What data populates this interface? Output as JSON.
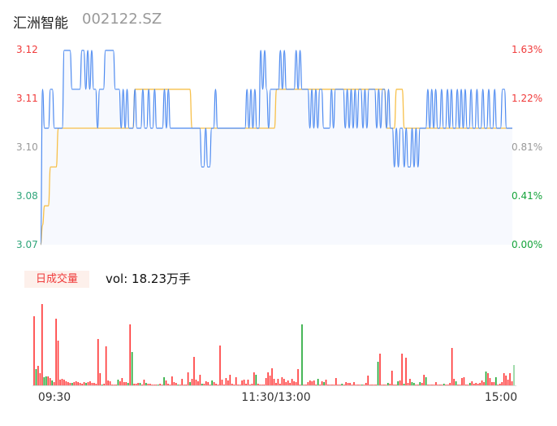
{
  "header": {
    "name": "汇洲智能",
    "code": "002122.SZ"
  },
  "colors": {
    "price_line": "#4d8af0",
    "avg_line": "#f7c04a",
    "area_fill": "#f7f9fe",
    "up": "#ff3333",
    "down": "#1aa52f",
    "up_label": "#f03a3a",
    "flat_label": "#999999",
    "down_label_left": "#2fa57a",
    "down_label_right": "#14a33a"
  },
  "volume_panel": {
    "badge": "日成交量",
    "total": "vol: 18.23万手"
  },
  "chart_data": [
    {
      "type": "line",
      "title": "",
      "y_ticks_left": [
        "3.12",
        "3.11",
        "3.10",
        "3.08",
        "3.07"
      ],
      "y_ticks_right": [
        "1.63%",
        "1.22%",
        "0.81%",
        "0.41%",
        "0.00%"
      ],
      "ylim": [
        3.07,
        3.12
      ],
      "base_price": 3.07,
      "x_ticks": [
        "09:30",
        "11:30/13:00",
        "15:00"
      ],
      "grid": false,
      "series": [
        {
          "key": "price",
          "values": [
            3.07,
            3.11,
            3.1,
            3.1,
            3.1,
            3.11,
            3.11,
            3.1,
            3.1,
            3.1,
            3.1,
            3.1,
            3.12,
            3.12,
            3.12,
            3.12,
            3.11,
            3.11,
            3.11,
            3.11,
            3.11,
            3.12,
            3.12,
            3.11,
            3.12,
            3.11,
            3.12,
            3.11,
            3.11,
            3.1,
            3.11,
            3.11,
            3.11,
            3.12,
            3.12,
            3.12,
            3.12,
            3.12,
            3.11,
            3.11,
            3.11,
            3.1,
            3.11,
            3.1,
            3.11,
            3.1,
            3.1,
            3.1,
            3.11,
            3.1,
            3.1,
            3.1,
            3.11,
            3.1,
            3.1,
            3.11,
            3.1,
            3.1,
            3.11,
            3.1,
            3.1,
            3.1,
            3.1,
            3.11,
            3.1,
            3.11,
            3.1,
            3.1,
            3.1,
            3.1,
            3.1,
            3.1,
            3.1,
            3.1,
            3.1,
            3.1,
            3.1,
            3.1,
            3.1,
            3.1,
            3.1,
            3.1,
            3.09,
            3.09,
            3.1,
            3.09,
            3.09,
            3.1,
            3.1,
            3.11,
            3.1,
            3.1,
            3.1,
            3.1,
            3.1,
            3.1,
            3.1,
            3.1,
            3.1,
            3.1,
            3.1,
            3.1,
            3.1,
            3.1,
            3.1,
            3.11,
            3.1,
            3.11,
            3.1,
            3.11,
            3.1,
            3.1,
            3.12,
            3.11,
            3.12,
            3.11,
            3.1,
            3.11,
            3.11,
            3.11,
            3.11,
            3.11,
            3.12,
            3.11,
            3.12,
            3.11,
            3.11,
            3.11,
            3.11,
            3.11,
            3.12,
            3.11,
            3.12,
            3.11,
            3.11,
            3.11,
            3.11,
            3.1,
            3.11,
            3.1,
            3.11,
            3.1,
            3.11,
            3.11,
            3.1,
            3.1,
            3.1,
            3.1,
            3.11,
            3.1,
            3.11,
            3.11,
            3.11,
            3.11,
            3.11,
            3.1,
            3.11,
            3.1,
            3.11,
            3.1,
            3.11,
            3.1,
            3.11,
            3.11,
            3.1,
            3.11,
            3.1,
            3.11,
            3.11,
            3.11,
            3.11,
            3.1,
            3.11,
            3.1,
            3.11,
            3.11,
            3.1,
            3.11,
            3.1,
            3.1,
            3.09,
            3.1,
            3.09,
            3.1,
            3.1,
            3.09,
            3.1,
            3.09,
            3.09,
            3.1,
            3.09,
            3.1,
            3.09,
            3.1,
            3.1,
            3.1,
            3.1,
            3.11,
            3.1,
            3.11,
            3.1,
            3.11,
            3.1,
            3.1,
            3.11,
            3.1,
            3.1,
            3.11,
            3.1,
            3.11,
            3.1,
            3.1,
            3.11,
            3.1,
            3.11,
            3.1,
            3.11,
            3.1,
            3.1,
            3.11,
            3.1,
            3.1,
            3.11,
            3.1,
            3.1,
            3.11,
            3.1,
            3.1,
            3.11,
            3.1,
            3.1,
            3.11,
            3.1,
            3.1,
            3.1,
            3.11,
            3.11,
            3.1,
            3.1,
            3.1,
            3.1
          ]
        },
        {
          "key": "average",
          "values": [
            3.07,
            3.075,
            3.08,
            3.08,
            3.08,
            3.09,
            3.09,
            3.09,
            3.09,
            3.1,
            3.1,
            3.1,
            3.1,
            3.1,
            3.1,
            3.1,
            3.1,
            3.1,
            3.1,
            3.1,
            3.1,
            3.1,
            3.1,
            3.1,
            3.1,
            3.1,
            3.1,
            3.1,
            3.1,
            3.1,
            3.1,
            3.1,
            3.1,
            3.1,
            3.1,
            3.1,
            3.1,
            3.1,
            3.1,
            3.1,
            3.1,
            3.1,
            3.1,
            3.1,
            3.1,
            3.1,
            3.1,
            3.1,
            3.11,
            3.11,
            3.11,
            3.11,
            3.11,
            3.11,
            3.11,
            3.11,
            3.11,
            3.11,
            3.11,
            3.11,
            3.11,
            3.11,
            3.11,
            3.11,
            3.11,
            3.11,
            3.11,
            3.11,
            3.11,
            3.11,
            3.11,
            3.11,
            3.11,
            3.11,
            3.11,
            3.11,
            3.11,
            3.1,
            3.1,
            3.1,
            3.1,
            3.1,
            3.1,
            3.1,
            3.1,
            3.1,
            3.1,
            3.1,
            3.1,
            3.1,
            3.1,
            3.1,
            3.1,
            3.1,
            3.1,
            3.1,
            3.1,
            3.1,
            3.1,
            3.1,
            3.1,
            3.1,
            3.1,
            3.1,
            3.1,
            3.1,
            3.1,
            3.1,
            3.1,
            3.1,
            3.1,
            3.1,
            3.1,
            3.1,
            3.1,
            3.1,
            3.1,
            3.1,
            3.1,
            3.1,
            3.11,
            3.11,
            3.11,
            3.11,
            3.11,
            3.11,
            3.11,
            3.11,
            3.11,
            3.11,
            3.11,
            3.11,
            3.11,
            3.11,
            3.11,
            3.11,
            3.11,
            3.11,
            3.11,
            3.11,
            3.11,
            3.11,
            3.11,
            3.11,
            3.11,
            3.11,
            3.11,
            3.11,
            3.11,
            3.11,
            3.11,
            3.11,
            3.11,
            3.11,
            3.11,
            3.11,
            3.11,
            3.11,
            3.11,
            3.11,
            3.11,
            3.11,
            3.11,
            3.11,
            3.11,
            3.11,
            3.11,
            3.11,
            3.11,
            3.11,
            3.11,
            3.11,
            3.11,
            3.11,
            3.11,
            3.11,
            3.1,
            3.1,
            3.1,
            3.1,
            3.1,
            3.11,
            3.11,
            3.11,
            3.11,
            3.1,
            3.1,
            3.1,
            3.1,
            3.1,
            3.1,
            3.1,
            3.1,
            3.1,
            3.1,
            3.1,
            3.1,
            3.1,
            3.1,
            3.1,
            3.1,
            3.1,
            3.1,
            3.1,
            3.1,
            3.1,
            3.1,
            3.1,
            3.1,
            3.1,
            3.1,
            3.1,
            3.1,
            3.1,
            3.1,
            3.1,
            3.1,
            3.1,
            3.1,
            3.1,
            3.1,
            3.1,
            3.1,
            3.1,
            3.1,
            3.1,
            3.1,
            3.1,
            3.1,
            3.1,
            3.1,
            3.1,
            3.1,
            3.1,
            3.1,
            3.1,
            3.1,
            3.1,
            3.1,
            3.1,
            3.1
          ]
        }
      ]
    },
    {
      "type": "bar",
      "title": "日成交量",
      "x_ticks": [
        "09:30",
        "11:30/13:00",
        "15:00"
      ],
      "volumes": [
        85,
        20,
        24,
        15,
        100,
        10,
        11,
        11,
        9,
        6,
        4,
        82,
        55,
        7,
        8,
        7,
        5,
        4,
        3,
        3,
        4,
        5,
        4,
        3,
        2,
        4,
        3,
        4,
        5,
        3,
        3,
        2,
        57,
        15,
        1,
        2,
        48,
        6,
        5,
        1,
        1,
        1,
        7,
        5,
        9,
        4,
        4,
        3,
        75,
        41,
        2,
        2,
        3,
        3,
        1,
        7,
        3,
        2,
        2,
        1,
        1,
        1,
        1,
        2,
        1,
        10,
        6,
        2,
        1,
        11,
        4,
        3,
        1,
        1,
        8,
        1,
        1,
        16,
        4,
        8,
        35,
        7,
        5,
        13,
        2,
        2,
        5,
        4,
        1,
        6,
        4,
        2,
        1,
        49,
        7,
        1,
        9,
        6,
        13,
        2,
        1,
        10,
        1,
        1,
        6,
        7,
        2,
        7,
        1,
        2,
        16,
        13,
        2,
        1,
        1,
        1,
        9,
        16,
        12,
        21,
        8,
        3,
        8,
        2,
        10,
        8,
        4,
        6,
        3,
        8,
        5,
        4,
        20,
        1,
        75,
        1,
        1,
        4,
        6,
        5,
        6,
        1,
        8,
        1,
        5,
        4,
        7,
        1,
        1,
        1,
        1,
        9,
        1,
        1,
        2,
        1,
        4,
        3,
        3,
        1,
        4,
        1,
        1,
        1,
        1,
        1,
        3,
        12,
        1,
        1,
        1,
        1,
        29,
        39,
        1,
        1,
        1,
        3,
        2,
        18,
        1,
        1,
        5,
        6,
        39,
        2,
        34,
        3,
        8,
        4,
        3,
        1,
        1,
        4,
        3,
        13,
        10,
        1,
        1,
        1,
        1,
        4,
        1,
        1,
        1,
        2,
        1,
        1,
        3,
        46,
        8,
        5,
        1,
        1,
        9,
        10,
        1,
        1,
        3,
        5,
        2,
        3,
        2,
        3,
        6,
        4,
        17,
        15,
        9,
        4,
        4,
        10,
        1,
        2,
        4,
        15,
        12,
        7,
        15,
        5,
        25
      ],
      "directions": [
        1,
        -1,
        1,
        1,
        1,
        -1,
        -1,
        1,
        1,
        -1,
        1,
        1,
        1,
        1,
        1,
        1,
        1,
        1,
        1,
        -1,
        1,
        1,
        1,
        1,
        1,
        1,
        -1,
        1,
        1,
        1,
        1,
        1,
        1,
        1,
        -1,
        1,
        1,
        1,
        1,
        1,
        1,
        1,
        -1,
        1,
        1,
        1,
        1,
        -1,
        1,
        -1,
        1,
        1,
        1,
        -1,
        1,
        1,
        -1,
        1,
        1,
        1,
        1,
        1,
        -1,
        1,
        1,
        -1,
        1,
        1,
        1,
        1,
        1,
        1,
        -1,
        1,
        1,
        1,
        1,
        1,
        -1,
        1,
        1,
        1,
        1,
        1,
        -1,
        1,
        1,
        1,
        1,
        -1,
        1,
        1,
        1,
        1,
        1,
        1,
        1,
        1,
        1,
        1,
        1,
        1,
        1,
        1,
        1,
        1,
        1,
        1,
        1,
        1,
        1,
        -1,
        1,
        1,
        1,
        1,
        1,
        1,
        1,
        1,
        1,
        1,
        1,
        1,
        1,
        1,
        1,
        1,
        1,
        1,
        1,
        1,
        1,
        1,
        -1,
        1,
        1,
        1,
        1,
        1,
        1,
        1,
        -1,
        1,
        1,
        -1,
        1,
        1,
        1,
        1,
        1,
        1,
        1,
        1,
        -1,
        1,
        1,
        1,
        1,
        1,
        1,
        1,
        1,
        1,
        -1,
        1,
        1,
        1,
        1,
        1,
        1,
        1,
        -1,
        1,
        1,
        1,
        1,
        -1,
        1,
        1,
        1,
        1,
        -1,
        1,
        1,
        -1,
        1,
        1,
        1,
        -1,
        -1,
        1,
        1,
        -1,
        1,
        1,
        -1,
        1,
        1,
        1,
        1,
        1,
        1,
        1,
        1,
        -1,
        1,
        1,
        1,
        1,
        1,
        -1,
        1,
        1,
        1,
        1,
        1,
        1,
        -1,
        1,
        1,
        1,
        1,
        1,
        1,
        1,
        -1,
        1,
        1,
        1,
        1,
        -1,
        1,
        1,
        1,
        1,
        1,
        1,
        1,
        1,
        -1
      ]
    }
  ]
}
